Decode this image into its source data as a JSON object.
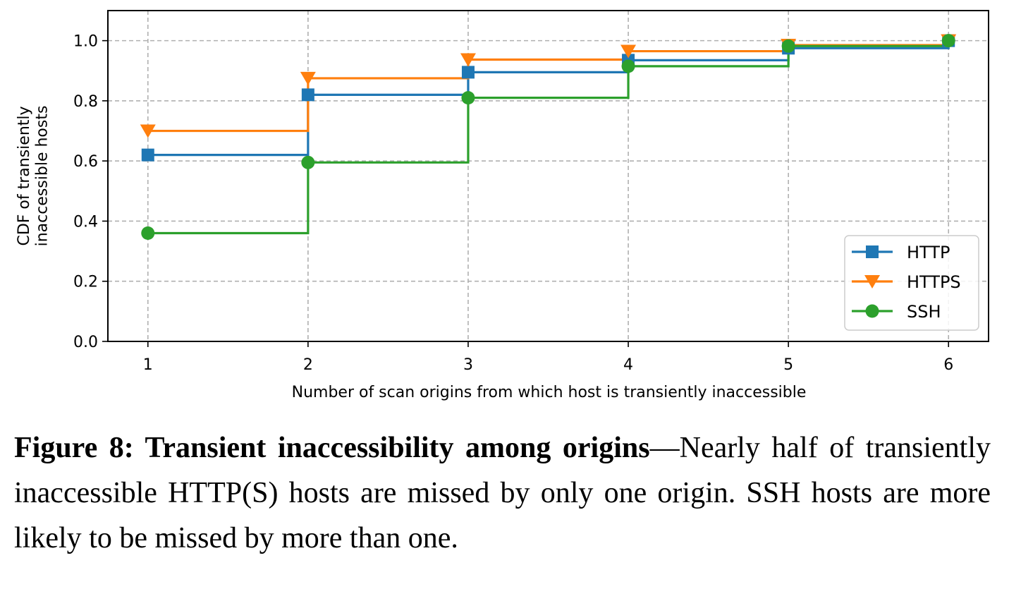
{
  "chart_data": {
    "type": "line",
    "step": "post",
    "x": [
      1,
      2,
      3,
      4,
      5,
      6
    ],
    "xticks": [
      "1",
      "2",
      "3",
      "4",
      "5",
      "6"
    ],
    "yticks": [
      "0.0",
      "0.2",
      "0.4",
      "0.6",
      "0.8",
      "1.0"
    ],
    "xlim": [
      0.75,
      6.25
    ],
    "ylim": [
      0,
      1.1
    ],
    "xlabel": "Number of scan origins from which host is transiently inaccessible",
    "ylabel_lines": [
      "CDF of transiently",
      "inaccessible hosts"
    ],
    "grid": true,
    "legend_position": "lower-right",
    "series": [
      {
        "name": "HTTP",
        "marker": "square",
        "color": "#1f77b4",
        "values": [
          0.62,
          0.82,
          0.895,
          0.935,
          0.975,
          1.0
        ]
      },
      {
        "name": "HTTPS",
        "marker": "triangle-down",
        "color": "#ff7f0e",
        "values": [
          0.7,
          0.875,
          0.937,
          0.965,
          0.985,
          1.0
        ]
      },
      {
        "name": "SSH",
        "marker": "circle",
        "color": "#2ca02c",
        "values": [
          0.36,
          0.595,
          0.81,
          0.915,
          0.982,
          1.0
        ]
      }
    ]
  },
  "caption": {
    "title": "Figure 8: Transient inaccessibility among origins",
    "dash": "—",
    "text": "Nearly half of transiently inaccessible HTTP(S) hosts are missed by only one origin. SSH hosts are more likely to be missed by more than one."
  }
}
